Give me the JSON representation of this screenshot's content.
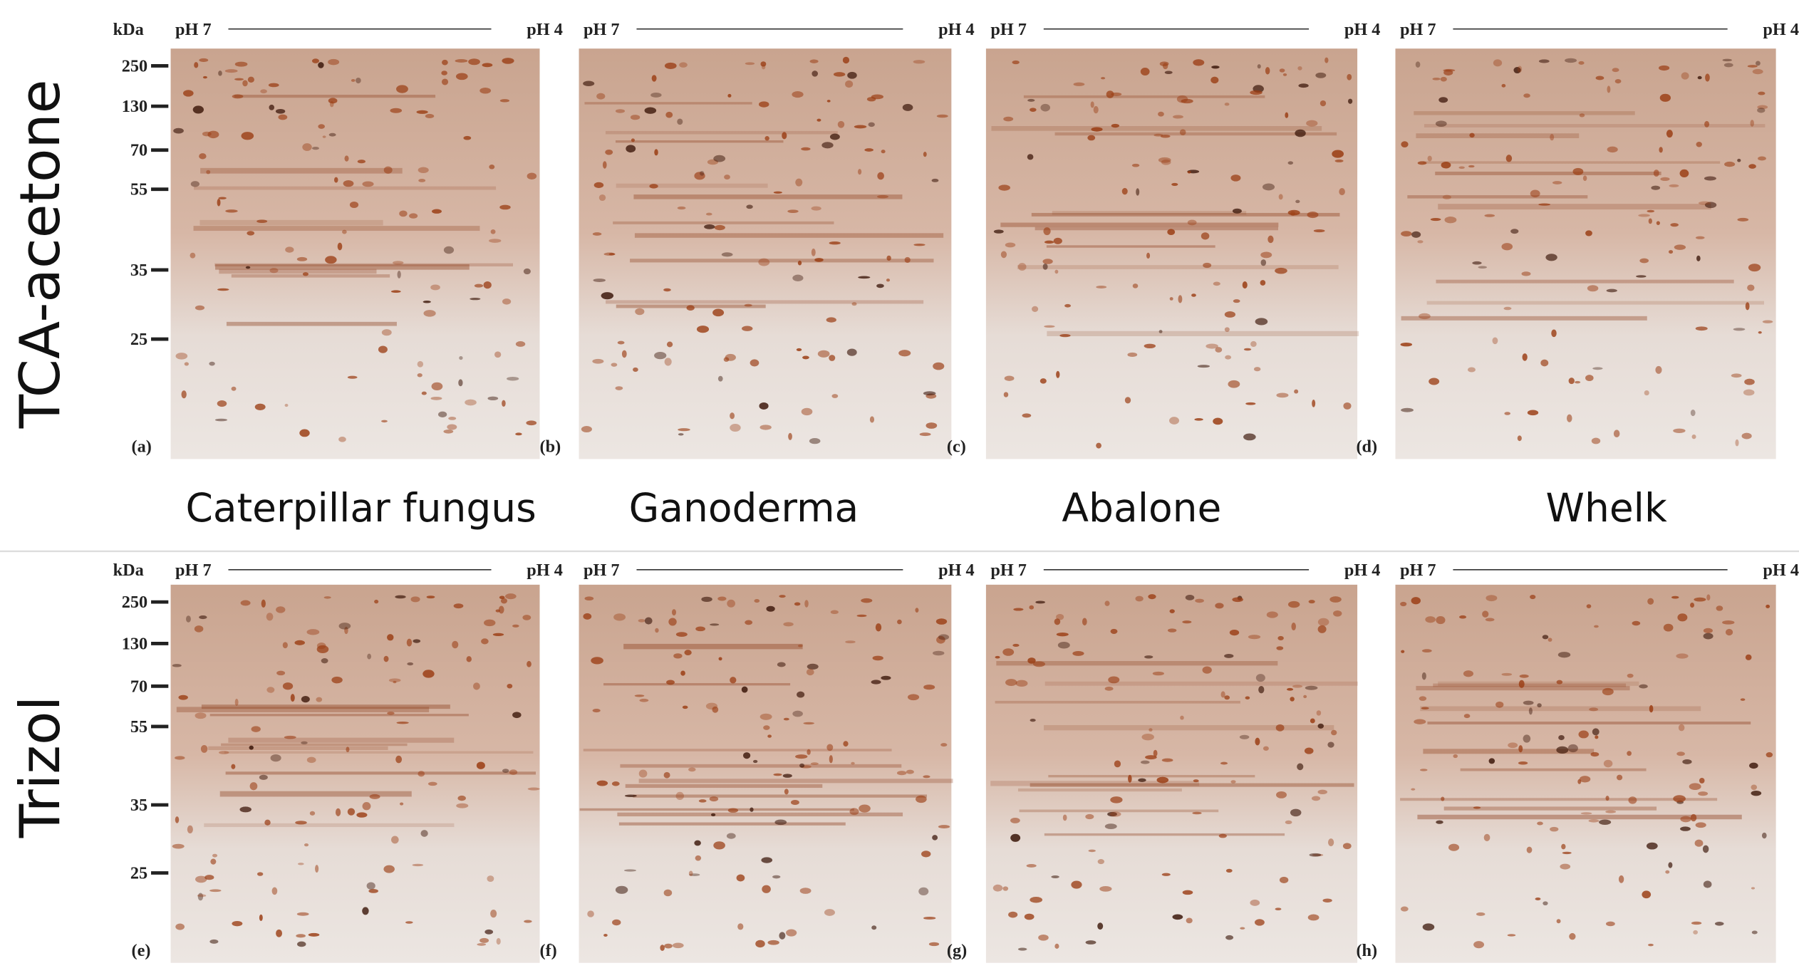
{
  "row_labels": [
    "TCA-acetone",
    "Trizol"
  ],
  "sample_names": [
    "Caterpillar fungus",
    "Ganoderma",
    "Abalone",
    "Whelk"
  ],
  "ph_left": "pH 7",
  "ph_right": "pH 4",
  "mw_unit": "kDa",
  "mw_markers": [
    250,
    130,
    70,
    55,
    35,
    25
  ],
  "panels": [
    "(a)",
    "(b)",
    "(c)",
    "(d)",
    "(e)",
    "(f)",
    "(g)",
    "(h)"
  ]
}
